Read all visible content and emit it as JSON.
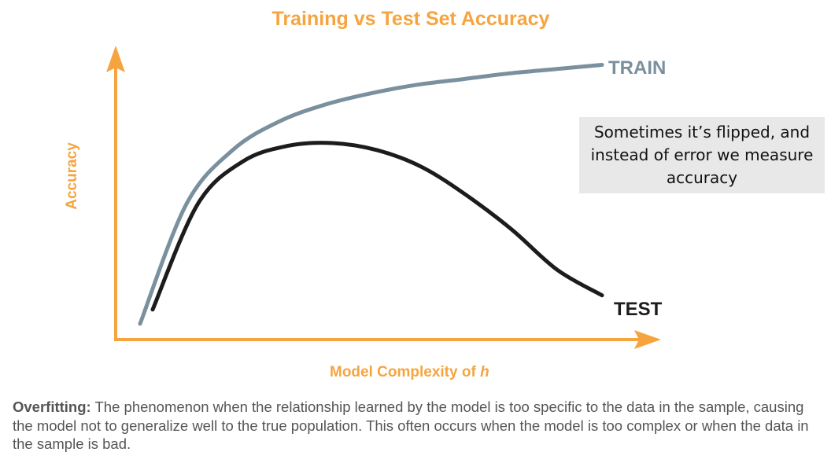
{
  "chart_data": {
    "type": "line",
    "title": "Training vs Test Set Accuracy",
    "xlabel": "Model Complexity of",
    "xlabel_var": "h",
    "ylabel": "Accuracy",
    "grid": false,
    "axes_style": "arrows",
    "x": [
      0,
      0.1,
      0.2,
      0.3,
      0.4,
      0.5,
      0.6,
      0.7,
      0.8,
      0.9,
      1.0
    ],
    "xlim": [
      0,
      1
    ],
    "ylim": [
      0,
      1
    ],
    "series": [
      {
        "name": "TRAIN",
        "color": "#7a909e",
        "values": [
          0.05,
          0.47,
          0.66,
          0.76,
          0.82,
          0.86,
          0.89,
          0.91,
          0.93,
          0.945,
          0.96
        ]
      },
      {
        "name": "TEST",
        "color": "#1c1c1c",
        "values": [
          0.1,
          0.47,
          0.62,
          0.675,
          0.685,
          0.66,
          0.6,
          0.5,
          0.38,
          0.24,
          0.15
        ]
      }
    ],
    "axis_color": "#f6a43f",
    "annotation": "Sometimes it’s flipped, and instead of error we measure accuracy"
  },
  "definition": {
    "term": "Overfitting:",
    "text": " The phenomenon when the relationship learned by the model is too specific to the data in the sample, causing the model not to generalize well to the true population. This often occurs when the model is too complex or when the data in the sample is bad."
  }
}
